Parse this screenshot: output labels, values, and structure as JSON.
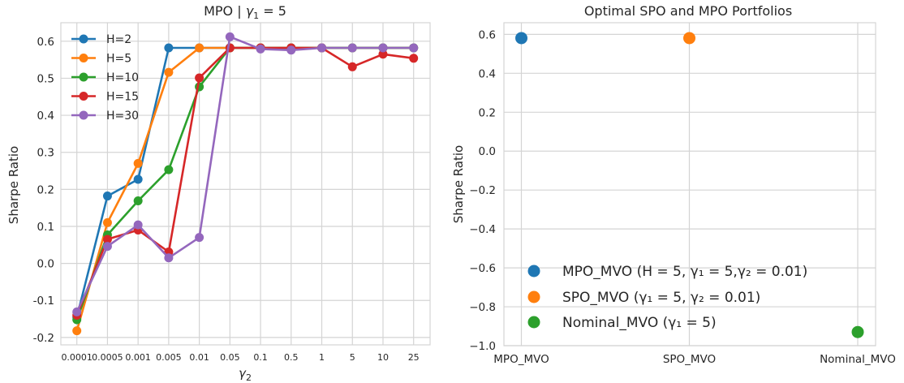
{
  "chart_data": [
    {
      "type": "line",
      "title": "MPO | γ₁ = 5",
      "xlabel": "γ₂",
      "ylabel": "Sharpe Ratio",
      "categories": [
        "0.0001",
        "0.0005",
        "0.001",
        "0.005",
        "0.01",
        "0.05",
        "0.1",
        "0.5",
        "1",
        "5",
        "10",
        "25"
      ],
      "ylim": [
        -0.22,
        0.65
      ],
      "yticks": [
        "-0.2",
        "-0.1",
        "0.0",
        "0.1",
        "0.2",
        "0.3",
        "0.4",
        "0.5",
        "0.6"
      ],
      "grid": true,
      "legend_position": "upper-left",
      "series": [
        {
          "name": "H=2",
          "color": "#1f77b4",
          "values": [
            -0.145,
            0.182,
            0.227,
            0.582,
            0.582,
            0.582,
            0.582,
            0.582,
            0.582,
            0.582,
            0.582,
            0.582
          ]
        },
        {
          "name": "H=5",
          "color": "#ff7f0e",
          "values": [
            -0.182,
            0.11,
            0.27,
            0.516,
            0.582,
            0.582,
            0.582,
            0.582,
            0.582,
            0.582,
            0.582,
            0.582
          ]
        },
        {
          "name": "H=10",
          "color": "#2ca02c",
          "values": [
            -0.152,
            0.077,
            0.169,
            0.253,
            0.477,
            0.582,
            0.582,
            0.582,
            0.582,
            0.582,
            0.582,
            0.582
          ]
        },
        {
          "name": "H=15",
          "color": "#d62728",
          "values": [
            -0.14,
            0.065,
            0.09,
            0.031,
            0.501,
            0.582,
            0.582,
            0.582,
            0.582,
            0.531,
            0.565,
            0.554
          ]
        },
        {
          "name": "H=30",
          "color": "#9467bd",
          "values": [
            -0.131,
            0.046,
            0.104,
            0.015,
            0.07,
            0.612,
            0.579,
            0.576,
            0.582,
            0.582,
            0.582,
            0.582
          ]
        }
      ]
    },
    {
      "type": "scatter",
      "title": "Optimal SPO and MPO Portfolios",
      "xlabel": "",
      "ylabel": "Sharpe Ratio",
      "categories": [
        "MPO_MVO",
        "SPO_MVO",
        "Nominal_MVO"
      ],
      "ylim": [
        -1.0,
        0.66
      ],
      "yticks": [
        "0.6",
        "0.4",
        "0.2",
        "0.0",
        "−0.2",
        "−0.4",
        "−0.6",
        "−0.8",
        "−1.0"
      ],
      "grid": true,
      "legend_position": "lower-left",
      "points": [
        {
          "category": "MPO_MVO",
          "value": 0.581,
          "color": "#1f77b4",
          "label": "MPO_MVO (H = 5, γ₁ = 5,γ₂ = 0.01)"
        },
        {
          "category": "SPO_MVO",
          "value": 0.581,
          "color": "#ff7f0e",
          "label": "SPO_MVO (γ₁ = 5, γ₂ = 0.01)"
        },
        {
          "category": "Nominal_MVO",
          "value": -0.93,
          "color": "#2ca02c",
          "label": "Nominal_MVO (γ₁ = 5)"
        }
      ]
    }
  ]
}
